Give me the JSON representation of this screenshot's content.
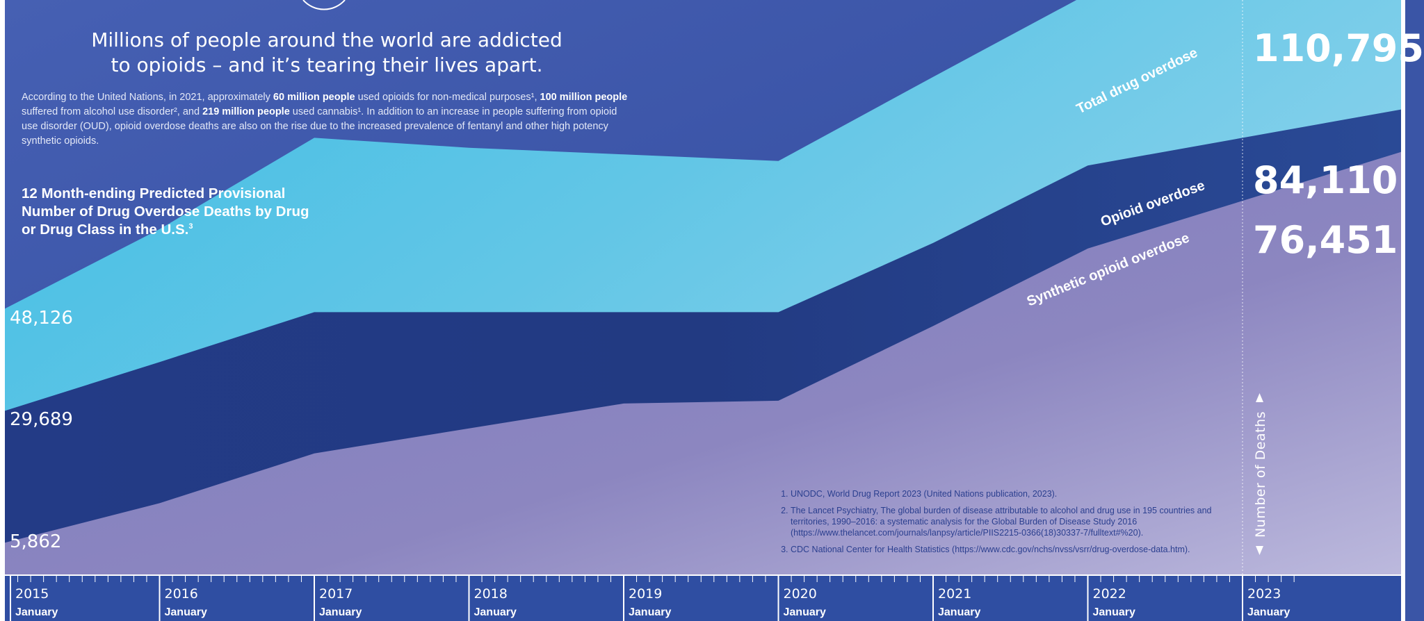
{
  "headline": "Millions of people around the world are addicted to opioids – and it’s tearing their lives apart.",
  "intro": {
    "p1": "According to the United Nations, in 2021, approximately ",
    "b1": "60 million people",
    "p2": " used opioids for non-medical purposes¹, ",
    "b2": "100 million people",
    "p3": " suffered from alcohol use disorder², and ",
    "b3": "219 million people",
    "p4": " used cannabis¹. In addition to an increase in people suffering from opioid use disorder (OUD), opioid overdose deaths are also on the rise due to the increased prevalence of fentanyl and other high potency synthetic opioids."
  },
  "chart_data": {
    "type": "area",
    "title": "12 Month-ending Predicted Provisional Number of Drug Overdose Deaths by Drug or Drug Class in the U.S.",
    "title_sup": "3",
    "ylabel": "Number of Deaths",
    "x": [
      "2015",
      "2016",
      "2017",
      "2018",
      "2019",
      "2020",
      "2021",
      "2022",
      "2023"
    ],
    "x_sublabel": "January",
    "ylim": [
      0,
      115000
    ],
    "series": [
      {
        "name": "Total drug overdose",
        "color": "#3fbde4",
        "values": [
          48126,
          62500,
          79000,
          77200,
          76000,
          74800,
          90000,
          105000,
          110795
        ],
        "start_label": "48,126",
        "end_label": "110,795"
      },
      {
        "name": "Opioid overdose",
        "color": "#223a82",
        "values": [
          29689,
          38500,
          47500,
          47500,
          47500,
          47500,
          60000,
          74000,
          84110
        ],
        "start_label": "29,689",
        "end_label": "84,110"
      },
      {
        "name": "Synthetic opioid overdose",
        "color": "#8c86c0",
        "values": [
          5862,
          13000,
          22000,
          26500,
          31000,
          31500,
          45000,
          59000,
          76451
        ],
        "start_label": "5,862",
        "end_label": "76,451"
      }
    ]
  },
  "footnotes": [
    "UNODC, World Drug Report 2023 (United Nations publication, 2023).",
    "The Lancet Psychiatry, The global burden of disease attributable to alcohol and drug use in 195 countries and territories, 1990–2016: a systematic analysis for the Global Burden of Disease Study 2016 (https://www.thelancet.com/journals/lanpsy/article/PIIS2215-0366(18)30337-7/fulltext#%20).",
    "CDC National Center for Health Statistics (https://www.cdc.gov/nchs/nvss/vsrr/drug-overdose-data.htm)."
  ],
  "colors": {
    "background": "#3a55a6",
    "total": "#3fbde4",
    "opioid": "#223a82",
    "synthetic": "#8c86c0",
    "footnote_text": "#2b3f8f"
  }
}
